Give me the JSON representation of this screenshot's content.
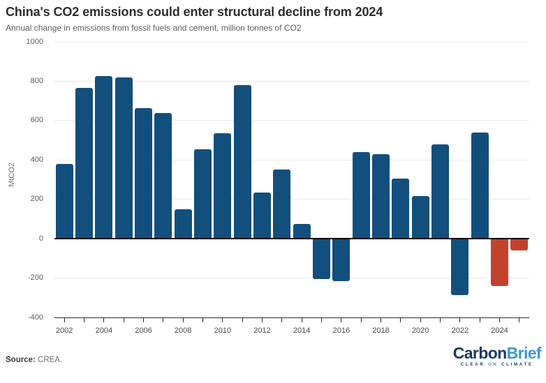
{
  "header": {
    "title": "China's CO2 emissions could enter structural decline from 2024",
    "subtitle": "Annual change in emissions from fossil fuels and cement, million tonnes of CO2"
  },
  "chart_data": {
    "type": "bar",
    "title": "China's CO2 emissions could enter structural decline from 2024",
    "subtitle": "Annual change in emissions from fossil fuels and cement, million tonnes of CO2",
    "xlabel": "",
    "ylabel": "MtCO2",
    "ylim": [
      -400,
      1000
    ],
    "grid": "horizontal",
    "legend": "none",
    "categories": [
      2002,
      2003,
      2004,
      2005,
      2006,
      2007,
      2008,
      2009,
      2010,
      2011,
      2012,
      2013,
      2014,
      2015,
      2016,
      2017,
      2018,
      2019,
      2020,
      2021,
      2022,
      2023,
      2024,
      2025
    ],
    "values": [
      380,
      765,
      825,
      820,
      665,
      640,
      150,
      455,
      535,
      780,
      235,
      350,
      75,
      -205,
      -215,
      440,
      430,
      305,
      215,
      480,
      -285,
      540,
      -240,
      -60
    ],
    "highlight_categories": [
      2024,
      2025
    ],
    "colors": {
      "historical_bar": "#134f7c",
      "highlight_bar": "#c2422c",
      "zero_line": "#000000",
      "gridline": "#e9e9e9",
      "axis_line": "#2b2b2b"
    },
    "yticks": [
      1000,
      800,
      600,
      400,
      200,
      0,
      -200,
      -400
    ],
    "xticks": [
      2002,
      2004,
      2006,
      2008,
      2010,
      2012,
      2014,
      2016,
      2018,
      2020,
      2022,
      2024
    ]
  },
  "footer": {
    "source_label": "Source:",
    "source_value": "CREA.",
    "logo": {
      "word1": "Carbon",
      "word2": "Brief",
      "tagline_words": [
        "CLEAR",
        "ON",
        "CLIMATE"
      ]
    }
  }
}
